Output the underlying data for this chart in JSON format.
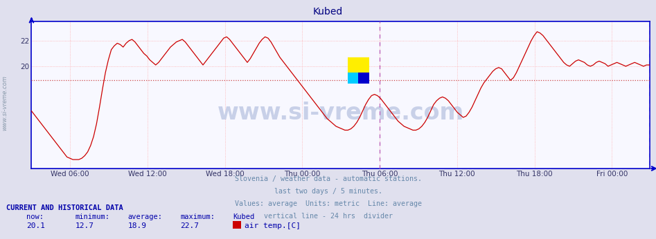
{
  "title": "Kubed",
  "title_color": "#000080",
  "bg_color": "#e0e0ee",
  "plot_bg_color": "#f8f8ff",
  "line_color": "#cc0000",
  "avg_line_color": "#cc4444",
  "vertical_divider_color": "#bb66bb",
  "border_color": "#0000cc",
  "grid_color": "#ffaaaa",
  "ylabel_text": "www.si-vreme.com",
  "ylabel_color": "#8899aa",
  "x_tick_labels": [
    "Wed 06:00",
    "Wed 12:00",
    "Wed 18:00",
    "Thu 00:00",
    "Thu 06:00",
    "Thu 12:00",
    "Thu 18:00",
    "Fri 00:00"
  ],
  "ylim": [
    12.0,
    23.5
  ],
  "yticks": [
    20,
    22
  ],
  "average_value": 18.9,
  "subtitle_lines": [
    "Slovenia / weather data - automatic stations.",
    "last two days / 5 minutes.",
    "Values: average  Units: metric  Line: average",
    "vertical line - 24 hrs  divider"
  ],
  "subtitle_color": "#6688aa",
  "footer_label_color": "#0000aa",
  "footer_header": "CURRENT AND HISTORICAL DATA",
  "footer_cols": [
    "now:",
    "minimum:",
    "average:",
    "maximum:",
    "Kubed"
  ],
  "footer_vals": [
    "20.1",
    "12.7",
    "18.9",
    "22.7"
  ],
  "legend_color": "#cc0000",
  "legend_text": "air temp.[C]",
  "watermark_text": "www.si-vreme.com",
  "watermark_color": "#c8d0e8",
  "temp_data": [
    16.5,
    16.2,
    15.9,
    15.6,
    15.3,
    15.0,
    14.7,
    14.4,
    14.1,
    13.8,
    13.5,
    13.2,
    12.9,
    12.8,
    12.7,
    12.7,
    12.7,
    12.8,
    13.0,
    13.3,
    13.8,
    14.5,
    15.5,
    16.8,
    18.2,
    19.5,
    20.5,
    21.3,
    21.6,
    21.8,
    21.7,
    21.5,
    21.8,
    22.0,
    22.1,
    21.9,
    21.6,
    21.3,
    21.0,
    20.8,
    20.5,
    20.3,
    20.1,
    20.3,
    20.6,
    20.9,
    21.2,
    21.5,
    21.7,
    21.9,
    22.0,
    22.1,
    21.9,
    21.6,
    21.3,
    21.0,
    20.7,
    20.4,
    20.1,
    20.4,
    20.7,
    21.0,
    21.3,
    21.6,
    21.9,
    22.2,
    22.3,
    22.1,
    21.8,
    21.5,
    21.2,
    20.9,
    20.6,
    20.3,
    20.6,
    21.0,
    21.4,
    21.8,
    22.1,
    22.3,
    22.2,
    21.9,
    21.5,
    21.1,
    20.7,
    20.4,
    20.1,
    19.8,
    19.5,
    19.2,
    18.9,
    18.6,
    18.3,
    18.0,
    17.7,
    17.4,
    17.1,
    16.8,
    16.5,
    16.2,
    15.9,
    15.7,
    15.5,
    15.3,
    15.2,
    15.1,
    15.0,
    15.0,
    15.1,
    15.3,
    15.6,
    16.0,
    16.5,
    17.0,
    17.4,
    17.7,
    17.8,
    17.7,
    17.5,
    17.2,
    16.9,
    16.6,
    16.3,
    16.0,
    15.7,
    15.5,
    15.3,
    15.2,
    15.1,
    15.0,
    15.0,
    15.1,
    15.3,
    15.6,
    16.0,
    16.5,
    17.0,
    17.3,
    17.5,
    17.6,
    17.5,
    17.3,
    17.0,
    16.7,
    16.4,
    16.2,
    16.0,
    16.1,
    16.4,
    16.8,
    17.3,
    17.8,
    18.3,
    18.7,
    19.0,
    19.3,
    19.6,
    19.8,
    19.9,
    19.8,
    19.5,
    19.2,
    18.9,
    19.1,
    19.5,
    20.0,
    20.5,
    21.0,
    21.5,
    22.0,
    22.4,
    22.7,
    22.6,
    22.4,
    22.1,
    21.8,
    21.5,
    21.2,
    20.9,
    20.6,
    20.3,
    20.1,
    20.0,
    20.2,
    20.4,
    20.5,
    20.4,
    20.3,
    20.1,
    20.0,
    20.1,
    20.3,
    20.4,
    20.3,
    20.2,
    20.0,
    20.1,
    20.2,
    20.3,
    20.2,
    20.1,
    20.0,
    20.1,
    20.2,
    20.3,
    20.2,
    20.1,
    20.0,
    20.1,
    20.1
  ]
}
